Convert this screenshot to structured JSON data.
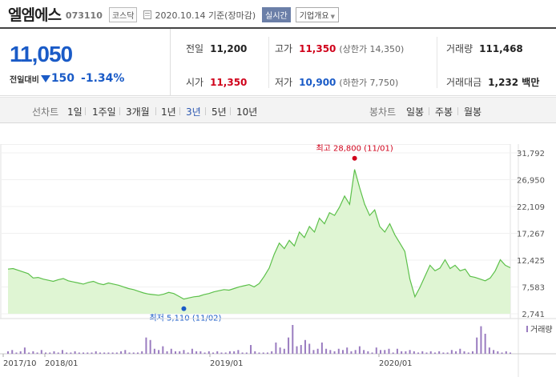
{
  "header": {
    "stock_name": "엘엠에스",
    "stock_code": "073110",
    "market": "코스닥",
    "date_text": "2020.10.14 기준(장마감)",
    "realtime_label": "실시간",
    "company_button": "기업개요"
  },
  "price": {
    "current": "11,050",
    "change_label": "전일대비",
    "change_amount": "150",
    "change_percent": "-1.34%"
  },
  "stats": {
    "prev_close": {
      "label": "전일",
      "value": "11,200"
    },
    "high": {
      "label": "고가",
      "value": "11,350",
      "sub": "(상한가 14,350)"
    },
    "volume": {
      "label": "거래량",
      "value": "111,468"
    },
    "open": {
      "label": "시가",
      "value": "11,350"
    },
    "low": {
      "label": "저가",
      "value": "10,900",
      "sub": "(하한가 7,750)"
    },
    "trade_value": {
      "label": "거래대금",
      "value": "1,232 백만"
    }
  },
  "tabs": {
    "line_label": "선차트",
    "line_items": [
      "1일",
      "1주일",
      "3개월",
      "1년",
      "3년",
      "5년",
      "10년"
    ],
    "active": "3년",
    "candle_label": "봉차트",
    "candle_items": [
      "일봉",
      "주봉",
      "월봉"
    ]
  },
  "colors": {
    "down": "#1a5bc7",
    "up": "#d0021b",
    "line": "#5cc04a",
    "fill": "#dff5d3",
    "volume": "#9a7cc0"
  },
  "chart_data": {
    "type": "area",
    "y_ticks": [
      "31,792",
      "26,950",
      "22,109",
      "17,267",
      "12,425",
      "7,583",
      "2,741"
    ],
    "y_range": [
      2741,
      31792
    ],
    "x_ticks": [
      "2017/10",
      "2018/01",
      "2019/01",
      "2020/01"
    ],
    "max_label": "최고 28,800 (11/01)",
    "min_label": "최저 5,110 (11/02)",
    "volume_label": "거래량",
    "series": [
      {
        "values": [
          10800,
          10900,
          10600,
          10300,
          10000,
          9200,
          9300,
          9000,
          8800,
          8600,
          8900,
          9100,
          8700,
          8500,
          8300,
          8100,
          8400,
          8600,
          8200,
          8000,
          8300,
          8100,
          7900,
          7600,
          7300,
          7100,
          6800,
          6500,
          6300,
          6200,
          6100,
          6300,
          6600,
          6400,
          5900,
          5400,
          5600,
          5800,
          5900,
          6200,
          6400,
          6700,
          6900,
          7100,
          7000,
          7300,
          7600,
          7800,
          8000,
          7600,
          8200,
          9500,
          11000,
          13500,
          15500,
          14500,
          16000,
          15000,
          17500,
          16500,
          18500,
          17500,
          20000,
          19000,
          21000,
          20500,
          22000,
          24000,
          22500,
          28800,
          25500,
          22500,
          20500,
          21500,
          18500,
          17500,
          19000,
          17000,
          15500,
          14000,
          9000,
          5800,
          7500,
          9500,
          11500,
          10500,
          11000,
          12500,
          10900,
          11500,
          10500,
          10800,
          9500,
          9300,
          9000,
          8700,
          9200,
          10500,
          12500,
          11500,
          11050
        ]
      }
    ],
    "volume": [
      2,
      3,
      1,
      2,
      5,
      1,
      2,
      1,
      3,
      1,
      1,
      2,
      1,
      3,
      1,
      1,
      2,
      1,
      1,
      1,
      1,
      2,
      1,
      1,
      1,
      1,
      1,
      2,
      3,
      1,
      1,
      1,
      2,
      13,
      11,
      4,
      3,
      6,
      2,
      4,
      2,
      2,
      3,
      1,
      4,
      2,
      2,
      1,
      2,
      1,
      2,
      1,
      1,
      2,
      2,
      3,
      1,
      1,
      7,
      2,
      1,
      1,
      1,
      2,
      9,
      5,
      4,
      13,
      23,
      6,
      7,
      11,
      8,
      3,
      4,
      9,
      4,
      3,
      2,
      4,
      3,
      5,
      2,
      3,
      6,
      3,
      2,
      1,
      5,
      3,
      3,
      4,
      1,
      4,
      2,
      2,
      3,
      2,
      1,
      2,
      1,
      2,
      1,
      2,
      1,
      1,
      3,
      2,
      4,
      2,
      1,
      2,
      13,
      22,
      16,
      5,
      3,
      2,
      1,
      2,
      1
    ]
  }
}
